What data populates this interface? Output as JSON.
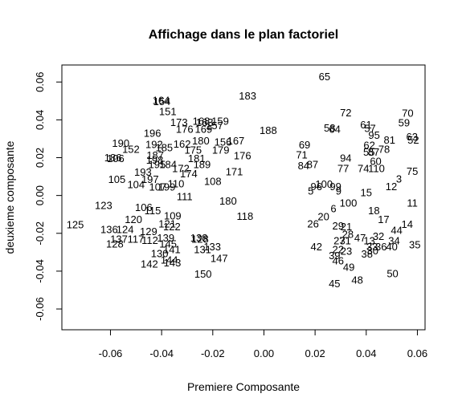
{
  "chart_data": {
    "type": "scatter",
    "title": "Affichage dans le plan factoriel",
    "xlabel": "Premiere Composante",
    "ylabel": "deuxieme composante",
    "xlim": [
      -0.079,
      0.063
    ],
    "ylim": [
      -0.071,
      0.069
    ],
    "xticks": [
      -0.06,
      -0.04,
      -0.02,
      0.0,
      0.02,
      0.04,
      0.06
    ],
    "xtick_labels": [
      "-0.06",
      "-0.04",
      "-0.02",
      "0.00",
      "0.02",
      "0.04",
      "0.06"
    ],
    "yticks": [
      -0.06,
      -0.04,
      -0.02,
      0.0,
      0.02,
      0.04,
      0.06
    ],
    "ytick_labels": [
      "-0.06",
      "-0.04",
      "-0.02",
      "0.00",
      "0.02",
      "0.04",
      "0.06"
    ],
    "grid": false,
    "points": [
      {
        "label": "65",
        "x": 0.0237,
        "y": 0.0629
      },
      {
        "label": "183",
        "x": -0.0064,
        "y": 0.0526
      },
      {
        "label": "154",
        "x": -0.0399,
        "y": 0.0497
      },
      {
        "label": "164",
        "x": -0.0402,
        "y": 0.0503
      },
      {
        "label": "151",
        "x": -0.0376,
        "y": 0.0445
      },
      {
        "label": "70",
        "x": 0.0562,
        "y": 0.0436
      },
      {
        "label": "72",
        "x": 0.032,
        "y": 0.0438
      },
      {
        "label": "173",
        "x": -0.0332,
        "y": 0.0386
      },
      {
        "label": "168",
        "x": -0.0245,
        "y": 0.0393
      },
      {
        "label": "159",
        "x": -0.0171,
        "y": 0.0393
      },
      {
        "label": "163",
        "x": -0.0232,
        "y": 0.0387
      },
      {
        "label": "59",
        "x": 0.0548,
        "y": 0.0385
      },
      {
        "label": "61",
        "x": 0.0399,
        "y": 0.0375
      },
      {
        "label": "196",
        "x": -0.0436,
        "y": 0.033
      },
      {
        "label": "176",
        "x": -0.031,
        "y": 0.035
      },
      {
        "label": "169",
        "x": -0.0236,
        "y": 0.035
      },
      {
        "label": "157",
        "x": -0.0193,
        "y": 0.037
      },
      {
        "label": "188",
        "x": 0.0017,
        "y": 0.0345
      },
      {
        "label": "58",
        "x": 0.0257,
        "y": 0.0358
      },
      {
        "label": "64",
        "x": 0.0277,
        "y": 0.035
      },
      {
        "label": "57",
        "x": 0.0415,
        "y": 0.0355
      },
      {
        "label": "95",
        "x": 0.0431,
        "y": 0.0318
      },
      {
        "label": "63",
        "x": 0.0579,
        "y": 0.031
      },
      {
        "label": "52",
        "x": 0.0584,
        "y": 0.0293
      },
      {
        "label": "81",
        "x": 0.0491,
        "y": 0.0293
      },
      {
        "label": "190",
        "x": -0.056,
        "y": 0.0277
      },
      {
        "label": "192",
        "x": -0.0429,
        "y": 0.027
      },
      {
        "label": "180",
        "x": -0.0247,
        "y": 0.029
      },
      {
        "label": "156",
        "x": -0.016,
        "y": 0.0283
      },
      {
        "label": "167",
        "x": -0.011,
        "y": 0.029
      },
      {
        "label": "162",
        "x": -0.032,
        "y": 0.0272
      },
      {
        "label": "69",
        "x": 0.0159,
        "y": 0.0267
      },
      {
        "label": "62",
        "x": 0.0412,
        "y": 0.0265
      },
      {
        "label": "78",
        "x": 0.047,
        "y": 0.0245
      },
      {
        "label": "152",
        "x": -0.052,
        "y": 0.0245
      },
      {
        "label": "185",
        "x": -0.039,
        "y": 0.0253
      },
      {
        "label": "175",
        "x": -0.0277,
        "y": 0.024
      },
      {
        "label": "179",
        "x": -0.0169,
        "y": 0.024
      },
      {
        "label": "176",
        "x": -0.0084,
        "y": 0.021
      },
      {
        "label": "71",
        "x": 0.0148,
        "y": 0.0215
      },
      {
        "label": "55",
        "x": 0.0411,
        "y": 0.023
      },
      {
        "label": "87",
        "x": 0.0429,
        "y": 0.023
      },
      {
        "label": "186",
        "x": -0.059,
        "y": 0.02
      },
      {
        "label": "106",
        "x": -0.058,
        "y": 0.0195
      },
      {
        "label": "187",
        "x": -0.0425,
        "y": 0.0212
      },
      {
        "label": "181",
        "x": -0.0263,
        "y": 0.0195
      },
      {
        "label": "198",
        "x": -0.0427,
        "y": 0.0188
      },
      {
        "label": "94",
        "x": 0.032,
        "y": 0.0197
      },
      {
        "label": "60",
        "x": 0.0437,
        "y": 0.018
      },
      {
        "label": "84",
        "x": 0.0155,
        "y": 0.0157
      },
      {
        "label": "87",
        "x": 0.019,
        "y": 0.0163
      },
      {
        "label": "77",
        "x": 0.031,
        "y": 0.0143
      },
      {
        "label": "74",
        "x": 0.0389,
        "y": 0.0143
      },
      {
        "label": "110",
        "x": 0.044,
        "y": 0.0143
      },
      {
        "label": "75",
        "x": 0.058,
        "y": 0.0128
      },
      {
        "label": "195",
        "x": -0.0418,
        "y": 0.0165
      },
      {
        "label": "184",
        "x": -0.0375,
        "y": 0.0165
      },
      {
        "label": "189",
        "x": -0.0242,
        "y": 0.0165
      },
      {
        "label": "172",
        "x": -0.0325,
        "y": 0.0143
      },
      {
        "label": "171",
        "x": -0.0116,
        "y": 0.0125
      },
      {
        "label": "193",
        "x": -0.0473,
        "y": 0.0123
      },
      {
        "label": "174",
        "x": -0.0294,
        "y": 0.0115
      },
      {
        "label": "105",
        "x": -0.0575,
        "y": 0.0085
      },
      {
        "label": "197",
        "x": -0.0445,
        "y": 0.0086
      },
      {
        "label": "104",
        "x": -0.05,
        "y": 0.0057
      },
      {
        "label": "110",
        "x": -0.0344,
        "y": 0.0062
      },
      {
        "label": "108",
        "x": -0.02,
        "y": 0.0075
      },
      {
        "label": "107",
        "x": -0.0415,
        "y": 0.0045
      },
      {
        "label": "199",
        "x": -0.038,
        "y": 0.0045
      },
      {
        "label": "99",
        "x": 0.028,
        "y": 0.0048
      },
      {
        "label": "100",
        "x": 0.0235,
        "y": 0.006
      },
      {
        "label": "3",
        "x": 0.0528,
        "y": 0.0088
      },
      {
        "label": "12",
        "x": 0.0498,
        "y": 0.0048
      },
      {
        "label": "96",
        "x": 0.0205,
        "y": 0.0048
      },
      {
        "label": "5",
        "x": 0.0183,
        "y": 0.0025
      },
      {
        "label": "9",
        "x": 0.0292,
        "y": 0.0025
      },
      {
        "label": "15",
        "x": 0.04,
        "y": 0.0015
      },
      {
        "label": "111",
        "x": -0.031,
        "y": -0.0006
      },
      {
        "label": "180",
        "x": -0.014,
        "y": -0.003
      },
      {
        "label": "100",
        "x": 0.033,
        "y": -0.004
      },
      {
        "label": "11",
        "x": 0.058,
        "y": -0.004
      },
      {
        "label": "123",
        "x": -0.0627,
        "y": -0.0052
      },
      {
        "label": "106",
        "x": -0.047,
        "y": -0.0063
      },
      {
        "label": "115",
        "x": -0.0435,
        "y": -0.008
      },
      {
        "label": "6",
        "x": 0.0272,
        "y": -0.007
      },
      {
        "label": "18",
        "x": 0.043,
        "y": -0.008
      },
      {
        "label": "109",
        "x": -0.0357,
        "y": -0.0107
      },
      {
        "label": "118",
        "x": -0.0074,
        "y": -0.011
      },
      {
        "label": "20",
        "x": 0.0233,
        "y": -0.0112
      },
      {
        "label": "17",
        "x": 0.0468,
        "y": -0.0127
      },
      {
        "label": "125",
        "x": -0.0738,
        "y": -0.0155
      },
      {
        "label": "120",
        "x": -0.051,
        "y": -0.0127
      },
      {
        "label": "26",
        "x": 0.0192,
        "y": -0.015
      },
      {
        "label": "14",
        "x": 0.056,
        "y": -0.0153
      },
      {
        "label": "121",
        "x": -0.0378,
        "y": -0.015
      },
      {
        "label": "122",
        "x": -0.036,
        "y": -0.0165
      },
      {
        "label": "29",
        "x": 0.029,
        "y": -0.016
      },
      {
        "label": "21",
        "x": 0.0322,
        "y": -0.0165
      },
      {
        "label": "44",
        "x": 0.0519,
        "y": -0.0183
      },
      {
        "label": "136",
        "x": -0.0605,
        "y": -0.018
      },
      {
        "label": "124",
        "x": -0.0543,
        "y": -0.018
      },
      {
        "label": "129",
        "x": -0.0451,
        "y": -0.019
      },
      {
        "label": "28",
        "x": 0.0328,
        "y": -0.0205
      },
      {
        "label": "32",
        "x": 0.0448,
        "y": -0.0215
      },
      {
        "label": "137",
        "x": -0.0567,
        "y": -0.023
      },
      {
        "label": "117",
        "x": -0.0501,
        "y": -0.023
      },
      {
        "label": "112",
        "x": -0.0446,
        "y": -0.0238
      },
      {
        "label": "139",
        "x": -0.0384,
        "y": -0.0225
      },
      {
        "label": "138",
        "x": -0.0254,
        "y": -0.0225
      },
      {
        "label": "128",
        "x": -0.025,
        "y": -0.023
      },
      {
        "label": "27",
        "x": 0.0295,
        "y": -0.024
      },
      {
        "label": "31",
        "x": 0.0318,
        "y": -0.024
      },
      {
        "label": "47",
        "x": 0.0376,
        "y": -0.0225
      },
      {
        "label": "13",
        "x": 0.0412,
        "y": -0.024
      },
      {
        "label": "34",
        "x": 0.0509,
        "y": -0.024
      },
      {
        "label": "128",
        "x": -0.0583,
        "y": -0.0257
      },
      {
        "label": "145",
        "x": -0.0375,
        "y": -0.0255
      },
      {
        "label": "133",
        "x": -0.0202,
        "y": -0.027
      },
      {
        "label": "42",
        "x": 0.0205,
        "y": -0.027
      },
      {
        "label": "33",
        "x": 0.0423,
        "y": -0.027
      },
      {
        "label": "36",
        "x": 0.0458,
        "y": -0.027
      },
      {
        "label": "40",
        "x": 0.05,
        "y": -0.027
      },
      {
        "label": "35",
        "x": 0.059,
        "y": -0.026
      },
      {
        "label": "141",
        "x": -0.036,
        "y": -0.0285
      },
      {
        "label": "131",
        "x": -0.024,
        "y": -0.0285
      },
      {
        "label": "22",
        "x": 0.029,
        "y": -0.0285
      },
      {
        "label": "23",
        "x": 0.0322,
        "y": -0.0295
      },
      {
        "label": "30",
        "x": 0.0425,
        "y": -0.0292
      },
      {
        "label": "130",
        "x": -0.0408,
        "y": -0.0307
      },
      {
        "label": "38",
        "x": 0.0403,
        "y": -0.031
      },
      {
        "label": "39",
        "x": 0.0276,
        "y": -0.0318
      },
      {
        "label": "144",
        "x": -0.037,
        "y": -0.034
      },
      {
        "label": "147",
        "x": -0.0175,
        "y": -0.0333
      },
      {
        "label": "142",
        "x": -0.0448,
        "y": -0.0363
      },
      {
        "label": "143",
        "x": -0.0358,
        "y": -0.0355
      },
      {
        "label": "46",
        "x": 0.029,
        "y": -0.0345
      },
      {
        "label": "49",
        "x": 0.0332,
        "y": -0.038
      },
      {
        "label": "150",
        "x": -0.0238,
        "y": -0.0415
      },
      {
        "label": "50",
        "x": 0.0503,
        "y": -0.0413
      },
      {
        "label": "48",
        "x": 0.0365,
        "y": -0.0447
      },
      {
        "label": "45",
        "x": 0.0276,
        "y": -0.0467
      }
    ]
  }
}
